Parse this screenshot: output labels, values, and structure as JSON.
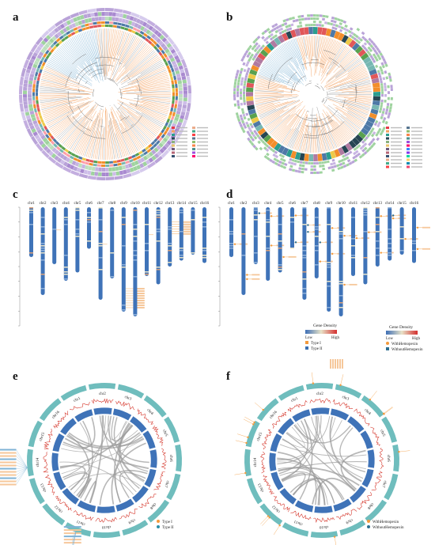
{
  "panels": {
    "a": {
      "label": "a"
    },
    "b": {
      "label": "b"
    },
    "c": {
      "label": "c"
    },
    "d": {
      "label": "d"
    },
    "e": {
      "label": "e"
    },
    "f": {
      "label": "f"
    }
  },
  "chromosomes": [
    "chr1",
    "chr2",
    "chr3",
    "chr4",
    "chr5",
    "chr6",
    "chr7",
    "chr8",
    "chr9",
    "chr10",
    "chr11",
    "chr12",
    "chr13",
    "chr14",
    "chr15",
    "chr16"
  ],
  "chromosomes_d": [
    "chr1",
    "chr2",
    "chr3",
    "chr4",
    "chr5",
    "chr6",
    "chr7",
    "chr8",
    "chr9",
    "chr10",
    "chr11",
    "chr12",
    "chr13",
    "chr14",
    "chr15",
    "chr16"
  ],
  "chr_length_rel": [
    0.42,
    0.74,
    0.48,
    0.62,
    0.55,
    0.35,
    0.78,
    0.6,
    0.88,
    0.92,
    0.58,
    0.65,
    0.5,
    0.45,
    0.4,
    0.47
  ],
  "legend_c": {
    "title": "Gene Density",
    "low": "Low",
    "high": "High",
    "items": [
      {
        "label": "Type I",
        "color": "#f39a3c"
      },
      {
        "label": "Type II",
        "color": "#3a6fb0"
      }
    ]
  },
  "legend_d": {
    "title": "Gene Density",
    "low": "Low",
    "high": "High",
    "items": [
      {
        "label": "WithHemopexin",
        "color": "#f39a3c"
      },
      {
        "label": "WithoutHemopexin",
        "color": "#2c6e8f"
      }
    ]
  },
  "legend_e": {
    "items": [
      {
        "label": "Type I",
        "color": "#f39a3c"
      },
      {
        "label": "Type II",
        "color": "#2a8fa8"
      }
    ]
  },
  "legend_f": {
    "items": [
      {
        "label": "WithHemopexin",
        "color": "#f39a3c"
      },
      {
        "label": "WithoutHemopexin",
        "color": "#2c6e8f"
      }
    ]
  },
  "colors": {
    "chrom_blue": "#3f73b8",
    "teal_ring": "#6fbdbd",
    "orange": "#f39a3c",
    "link_gray": "#9a9a9a",
    "purple_ring": "#b9a3d8",
    "green_ring": "#9fd39f"
  }
}
